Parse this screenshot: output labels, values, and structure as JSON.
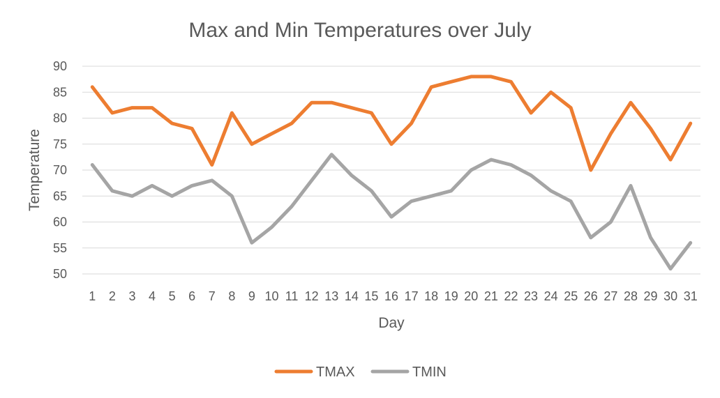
{
  "chart_data": {
    "type": "line",
    "title": "Max and Min Temperatures over July",
    "xlabel": "Day",
    "ylabel": "Temperature",
    "categories": [
      "1",
      "2",
      "3",
      "4",
      "5",
      "6",
      "7",
      "8",
      "9",
      "10",
      "11",
      "12",
      "13",
      "14",
      "15",
      "16",
      "17",
      "18",
      "19",
      "20",
      "21",
      "22",
      "23",
      "24",
      "25",
      "26",
      "27",
      "28",
      "29",
      "30",
      "31"
    ],
    "ylim": [
      50,
      90
    ],
    "yticks": [
      "50",
      "55",
      "60",
      "65",
      "70",
      "75",
      "80",
      "85",
      "90"
    ],
    "grid": true,
    "legend_position": "bottom",
    "series": [
      {
        "name": "TMAX",
        "color": "#ed7d31",
        "values": [
          86,
          81,
          82,
          82,
          79,
          78,
          71,
          81,
          75,
          77,
          79,
          83,
          83,
          82,
          81,
          75,
          79,
          86,
          87,
          88,
          88,
          87,
          81,
          85,
          82,
          70,
          77,
          83,
          78,
          72,
          79
        ]
      },
      {
        "name": "TMIN",
        "color": "#a5a5a5",
        "values": [
          71,
          66,
          65,
          67,
          65,
          67,
          68,
          65,
          56,
          59,
          63,
          68,
          73,
          69,
          66,
          61,
          64,
          65,
          66,
          70,
          72,
          71,
          69,
          66,
          64,
          57,
          60,
          67,
          57,
          51,
          56
        ]
      }
    ]
  }
}
